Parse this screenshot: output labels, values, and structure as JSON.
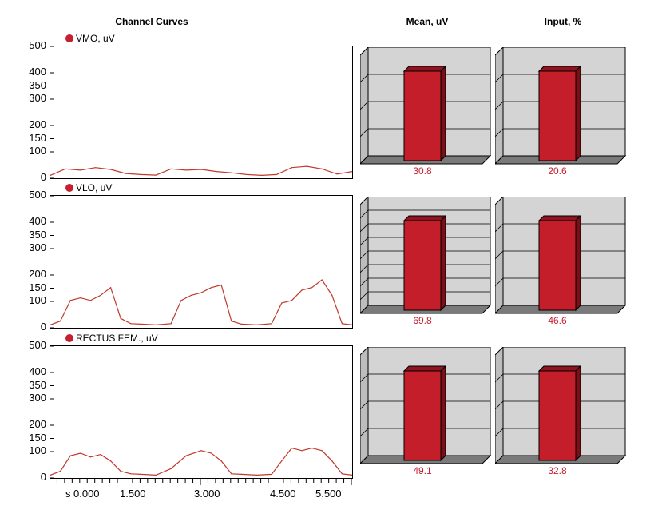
{
  "headers": {
    "curves": "Channel Curves",
    "mean": "Mean, uV",
    "input": "Input, %"
  },
  "y_ticks": [
    "500",
    "400",
    "350",
    "300",
    "200",
    "150",
    "100",
    "0"
  ],
  "x_axis": {
    "unit": "s",
    "ticks": [
      "0.000",
      "1.500",
      "3.000",
      "4.500",
      "5.500"
    ]
  },
  "colors": {
    "signal": "#c0392b",
    "bar": "#c41e2a",
    "value_text": "#c42030"
  },
  "chart_data": [
    {
      "type": "line",
      "title": "VMO, uV",
      "ylim": [
        0,
        500
      ],
      "xlim": [
        0,
        6.0
      ],
      "x": [
        0.0,
        0.3,
        0.6,
        0.9,
        1.2,
        1.5,
        1.8,
        2.1,
        2.4,
        2.7,
        3.0,
        3.3,
        3.6,
        3.9,
        4.2,
        4.5,
        4.8,
        5.1,
        5.4,
        5.7,
        6.0
      ],
      "y": [
        5,
        30,
        25,
        35,
        28,
        12,
        8,
        6,
        30,
        25,
        28,
        20,
        15,
        8,
        5,
        8,
        35,
        40,
        30,
        10,
        20
      ]
    },
    {
      "type": "line",
      "title": "VLO, uV",
      "ylim": [
        0,
        500
      ],
      "xlim": [
        0,
        6.0
      ],
      "x": [
        0.0,
        0.2,
        0.4,
        0.6,
        0.8,
        1.0,
        1.2,
        1.4,
        1.6,
        1.8,
        2.1,
        2.4,
        2.6,
        2.8,
        3.0,
        3.2,
        3.4,
        3.6,
        3.8,
        4.1,
        4.4,
        4.6,
        4.8,
        5.0,
        5.2,
        5.4,
        5.6,
        5.8,
        6.0
      ],
      "y": [
        5,
        20,
        100,
        110,
        100,
        120,
        150,
        30,
        10,
        8,
        5,
        10,
        100,
        120,
        130,
        150,
        160,
        20,
        8,
        5,
        10,
        90,
        100,
        140,
        150,
        180,
        120,
        10,
        5
      ]
    },
    {
      "type": "line",
      "title": "RECTUS FEM., uV",
      "ylim": [
        0,
        500
      ],
      "xlim": [
        0,
        6.0
      ],
      "x": [
        0.0,
        0.2,
        0.4,
        0.6,
        0.8,
        1.0,
        1.2,
        1.4,
        1.6,
        1.8,
        2.1,
        2.4,
        2.7,
        3.0,
        3.2,
        3.4,
        3.6,
        3.8,
        4.1,
        4.4,
        4.6,
        4.8,
        5.0,
        5.2,
        5.4,
        5.6,
        5.8,
        6.0
      ],
      "y": [
        5,
        20,
        80,
        90,
        75,
        85,
        60,
        20,
        10,
        8,
        5,
        30,
        80,
        100,
        90,
        60,
        10,
        8,
        5,
        8,
        60,
        110,
        100,
        110,
        100,
        60,
        10,
        5
      ]
    },
    {
      "type": "bar",
      "title": "Mean, uV",
      "series": [
        {
          "values": [
            30.8,
            69.8,
            49.1
          ]
        }
      ]
    },
    {
      "type": "bar",
      "title": "Input, %",
      "series": [
        {
          "values": [
            20.6,
            46.6,
            32.8
          ]
        }
      ]
    }
  ]
}
